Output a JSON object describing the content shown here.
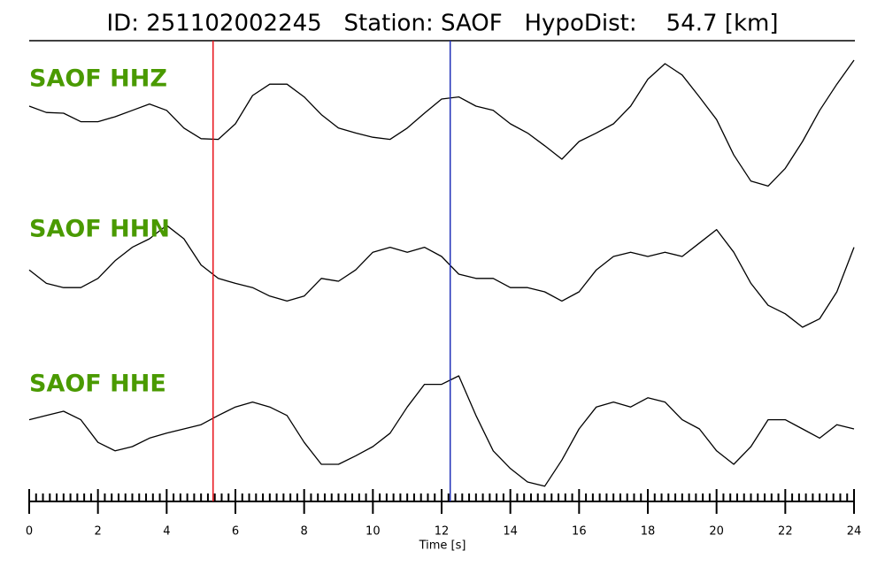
{
  "chart_data": {
    "type": "line",
    "title": "ID: 251102002245   Station: SAOF   HypoDist:    54.7 [km]",
    "xlabel": "Time [s]",
    "xlim": [
      0,
      24
    ],
    "xticks": [
      0,
      2,
      4,
      6,
      8,
      10,
      12,
      14,
      16,
      18,
      20,
      22,
      24
    ],
    "xminorticks": [
      0.2,
      0.4,
      0.6,
      0.8,
      1,
      1.2,
      1.4,
      1.6,
      1.8,
      2.2,
      2.4,
      2.6,
      2.8,
      3,
      3.2,
      3.4,
      3.6,
      3.8,
      4.2,
      4.4,
      4.6,
      4.8,
      5,
      5.2,
      5.4,
      5.6,
      5.8,
      6.2,
      6.4,
      6.6,
      6.8,
      7,
      7.2,
      7.4,
      7.6,
      7.8,
      8.2,
      8.4,
      8.6,
      8.8,
      9,
      9.2,
      9.4,
      9.6,
      9.8,
      10.2,
      10.4,
      10.6,
      10.8,
      11,
      11.2,
      11.4,
      11.6,
      11.8,
      12.2,
      12.4,
      12.6,
      12.8,
      13,
      13.2,
      13.4,
      13.6,
      13.8,
      14.2,
      14.4,
      14.6,
      14.8,
      15,
      15.2,
      15.4,
      15.6,
      15.8,
      16.2,
      16.4,
      16.6,
      16.8,
      17,
      17.2,
      17.4,
      17.6,
      17.8,
      18.2,
      18.4,
      18.6,
      18.8,
      19,
      19.2,
      19.4,
      19.6,
      19.8,
      20.2,
      20.4,
      20.6,
      20.8,
      21,
      21.2,
      21.4,
      21.6,
      21.8,
      22.2,
      22.4,
      22.6,
      22.8,
      23,
      23.2,
      23.4,
      23.6,
      23.8
    ],
    "ylim": [
      -1,
      1
    ],
    "markers": [
      {
        "x": 5.35,
        "color": "#e8141c"
      },
      {
        "x": 12.25,
        "color": "#1f2fb8"
      }
    ],
    "x": [
      0,
      0.5,
      1,
      1.5,
      2,
      2.5,
      3,
      3.5,
      4,
      4.5,
      5,
      5.5,
      6,
      6.5,
      7,
      7.5,
      8,
      8.5,
      9,
      9.5,
      10,
      10.5,
      11,
      11.5,
      12,
      12.5,
      13,
      13.5,
      14,
      14.5,
      15,
      15.5,
      16,
      16.5,
      17,
      17.5,
      18,
      18.5,
      19,
      19.5,
      20,
      20.5,
      21,
      21.5,
      22,
      22.5,
      23,
      23.5,
      24
    ],
    "series": [
      {
        "name": "SAOF HHZ",
        "color": "#000000",
        "values": [
          0.25,
          0.16,
          0.15,
          0.03,
          0.03,
          0.1,
          0.19,
          0.28,
          0.19,
          -0.06,
          -0.21,
          -0.22,
          0,
          0.4,
          0.56,
          0.56,
          0.38,
          0.13,
          -0.06,
          -0.13,
          -0.19,
          -0.22,
          -0.06,
          0.15,
          0.35,
          0.38,
          0.25,
          0.19,
          0,
          -0.13,
          -0.31,
          -0.5,
          -0.25,
          -0.13,
          0,
          0.25,
          0.63,
          0.85,
          0.69,
          0.38,
          0.06,
          -0.44,
          -0.81,
          -0.88,
          -0.63,
          -0.25,
          0.19,
          0.56,
          0.9
        ]
      },
      {
        "name": "SAOF HHN",
        "color": "#000000",
        "values": [
          0.06,
          -0.13,
          -0.19,
          -0.19,
          -0.06,
          0.19,
          0.38,
          0.5,
          0.69,
          0.5,
          0.13,
          -0.06,
          -0.13,
          -0.19,
          -0.31,
          -0.38,
          -0.31,
          -0.06,
          -0.1,
          0.06,
          0.31,
          0.38,
          0.31,
          0.38,
          0.25,
          0,
          -0.06,
          -0.06,
          -0.19,
          -0.19,
          -0.25,
          -0.38,
          -0.25,
          0.06,
          0.25,
          0.31,
          0.25,
          0.31,
          0.25,
          0.44,
          0.63,
          0.31,
          -0.13,
          -0.44,
          -0.56,
          -0.75,
          -0.63,
          -0.25,
          0.38
        ]
      },
      {
        "name": "SAOF HHE",
        "color": "#000000",
        "values": [
          0.13,
          0.19,
          0.25,
          0.13,
          -0.19,
          -0.31,
          -0.25,
          -0.13,
          -0.06,
          0,
          0.06,
          0.19,
          0.31,
          0.38,
          0.31,
          0.19,
          -0.19,
          -0.5,
          -0.5,
          -0.38,
          -0.25,
          -0.06,
          0.31,
          0.63,
          0.63,
          0.75,
          0.19,
          -0.31,
          -0.56,
          -0.75,
          -0.81,
          -0.44,
          0,
          0.31,
          0.38,
          0.31,
          0.44,
          0.38,
          0.13,
          0,
          -0.31,
          -0.5,
          -0.25,
          0.13,
          0.13,
          0,
          -0.13,
          0.06,
          0
        ]
      }
    ]
  }
}
